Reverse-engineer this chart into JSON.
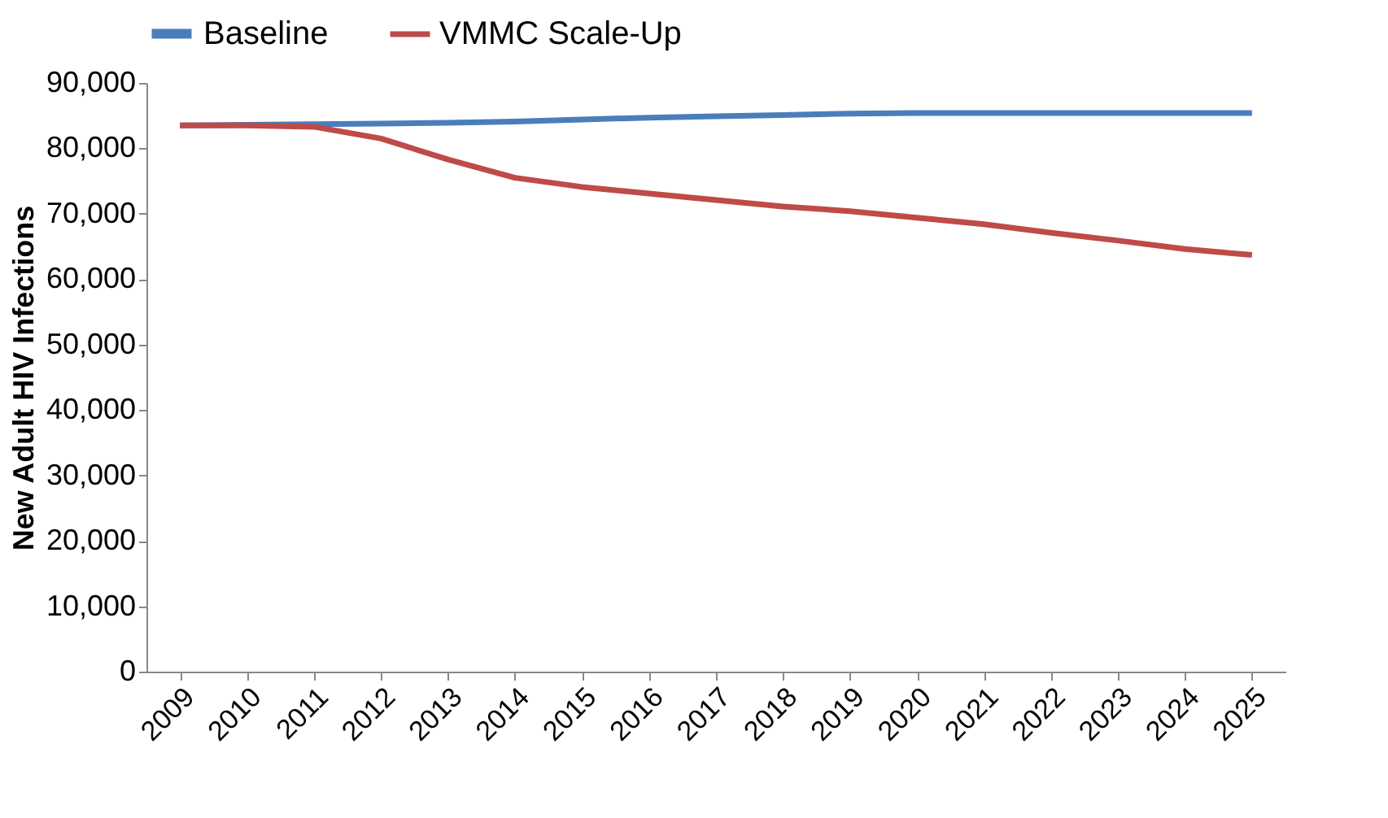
{
  "chart_data": {
    "type": "line",
    "ylabel": "New Adult HIV Infections",
    "categories": [
      "2009",
      "2010",
      "2011",
      "2012",
      "2013",
      "2014",
      "2015",
      "2016",
      "2017",
      "2018",
      "2019",
      "2020",
      "2021",
      "2022",
      "2023",
      "2024",
      "2025"
    ],
    "series": [
      {
        "name": "Baseline",
        "color": "#4a7ebb",
        "values": [
          83500,
          83600,
          83700,
          83800,
          83900,
          84100,
          84400,
          84700,
          84900,
          85100,
          85300,
          85400,
          85400,
          85400,
          85400,
          85400,
          85400
        ]
      },
      {
        "name": "VMMC Scale-Up",
        "color": "#be4b48",
        "values": [
          83500,
          83500,
          83300,
          81500,
          78300,
          75500,
          74100,
          73100,
          72100,
          71100,
          70400,
          69400,
          68400,
          67100,
          65900,
          64600,
          63700
        ]
      }
    ],
    "ylim": [
      0,
      90000
    ],
    "yticks": [
      {
        "value": 0,
        "label": "0"
      },
      {
        "value": 10000,
        "label": "10,000"
      },
      {
        "value": 20000,
        "label": "20,000"
      },
      {
        "value": 30000,
        "label": "30,000"
      },
      {
        "value": 40000,
        "label": "40,000"
      },
      {
        "value": 50000,
        "label": "50,000"
      },
      {
        "value": 60000,
        "label": "60,000"
      },
      {
        "value": 70000,
        "label": "70,000"
      },
      {
        "value": 80000,
        "label": "80,000"
      },
      {
        "value": 90000,
        "label": "90,000"
      }
    ],
    "grid": false,
    "legend": "top",
    "marker": "none",
    "line_style": "solid"
  }
}
